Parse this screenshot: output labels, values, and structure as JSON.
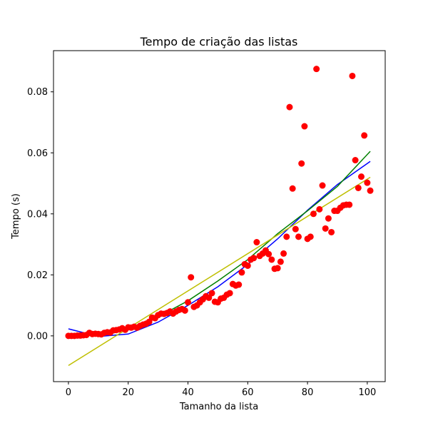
{
  "chart_data": {
    "type": "scatter",
    "title": "Tempo de criação das listas",
    "xlabel": "Tamanho da lista",
    "ylabel": "Tempo (s)",
    "xlim": [
      -5,
      106
    ],
    "ylim": [
      -0.015,
      0.0935
    ],
    "xticks": [
      0,
      20,
      40,
      60,
      80,
      100
    ],
    "yticks": [
      0.0,
      0.02,
      0.04,
      0.06,
      0.08
    ],
    "xtick_labels": [
      "0",
      "20",
      "40",
      "60",
      "80",
      "100"
    ],
    "ytick_labels": [
      "0.00",
      "0.02",
      "0.04",
      "0.06",
      "0.08"
    ],
    "grid": false,
    "series": [
      {
        "type": "scatter",
        "color": "#ff0000",
        "x": [
          0,
          1,
          2,
          3,
          4,
          5,
          6,
          7,
          8,
          9,
          10,
          11,
          12,
          13,
          14,
          15,
          16,
          17,
          18,
          19,
          20,
          21,
          22,
          23,
          24,
          25,
          26,
          27,
          28,
          29,
          30,
          31,
          32,
          33,
          34,
          35,
          36,
          37,
          38,
          39,
          40,
          41,
          42,
          43,
          44,
          45,
          46,
          47,
          48,
          49,
          50,
          51,
          52,
          53,
          54,
          55,
          56,
          57,
          58,
          59,
          60,
          61,
          62,
          63,
          64,
          65,
          66,
          67,
          68,
          69,
          70,
          71,
          72,
          73,
          74,
          75,
          76,
          77,
          78,
          79,
          80,
          81,
          82,
          83,
          84,
          85,
          86,
          87,
          88,
          89,
          90,
          91,
          92,
          93,
          94,
          95,
          96,
          97,
          98,
          99,
          100,
          101
        ],
        "y": [
          0.0,
          0.0,
          0.0,
          0.0001,
          0.0001,
          0.0002,
          0.0003,
          0.001,
          0.0006,
          0.0007,
          0.0006,
          0.0005,
          0.001,
          0.0012,
          0.0011,
          0.0018,
          0.0019,
          0.0021,
          0.0025,
          0.002,
          0.0028,
          0.0027,
          0.003,
          0.0027,
          0.0033,
          0.0037,
          0.004,
          0.0046,
          0.006,
          0.0058,
          0.0068,
          0.0073,
          0.0072,
          0.0075,
          0.008,
          0.0073,
          0.008,
          0.0085,
          0.0088,
          0.0083,
          0.011,
          0.0192,
          0.0095,
          0.01,
          0.011,
          0.012,
          0.013,
          0.0125,
          0.014,
          0.0112,
          0.011,
          0.0122,
          0.0125,
          0.0135,
          0.014,
          0.017,
          0.0165,
          0.0168,
          0.0208,
          0.0235,
          0.023,
          0.025,
          0.0255,
          0.0307,
          0.0262,
          0.027,
          0.028,
          0.0268,
          0.025,
          0.022,
          0.0222,
          0.0243,
          0.027,
          0.0325,
          0.075,
          0.0483,
          0.035,
          0.0325,
          0.0565,
          0.0687,
          0.0318,
          0.0325,
          0.04,
          0.0875,
          0.0415,
          0.0493,
          0.0352,
          0.0385,
          0.034,
          0.041,
          0.041,
          0.042,
          0.0428,
          0.043,
          0.043,
          0.0852,
          0.0576,
          0.0485,
          0.0522,
          0.0657,
          0.0502,
          0.0476
        ]
      },
      {
        "type": "line",
        "color": "#0000ff",
        "x": [
          0,
          10,
          20,
          30,
          40,
          50,
          60,
          70,
          80,
          90,
          101
        ],
        "y": [
          0.0023,
          -0.0002,
          0.0006,
          0.0045,
          0.01,
          0.0161,
          0.0234,
          0.0318,
          0.0412,
          0.0496,
          0.0572
        ]
      },
      {
        "type": "line",
        "color": "#008000",
        "x": [
          0,
          10,
          20,
          30,
          40,
          50,
          60,
          70,
          80,
          90,
          101
        ],
        "y": [
          -0.0008,
          0.0005,
          0.0025,
          0.0062,
          0.0115,
          0.018,
          0.025,
          0.0335,
          0.041,
          0.049,
          0.0605
        ]
      },
      {
        "type": "line",
        "color": "#bfbf00",
        "x": [
          0,
          101
        ],
        "y": [
          -0.0097,
          0.052
        ]
      }
    ]
  }
}
